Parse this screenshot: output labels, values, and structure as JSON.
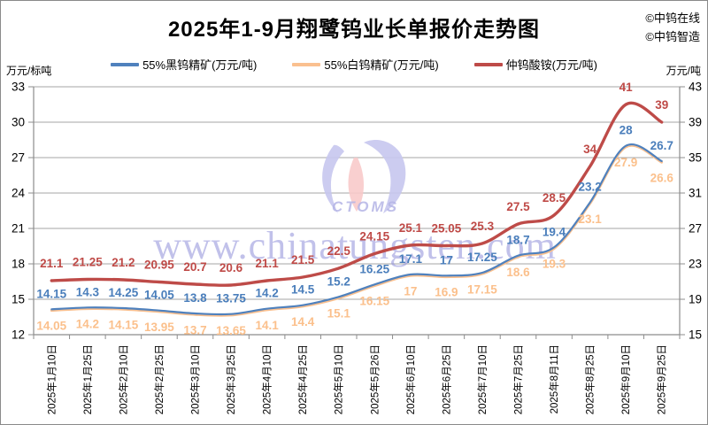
{
  "title": "2025年1-9月翔鹭钨业长单报价走势图",
  "copyright": {
    "line1": "©中钨在线",
    "line2": "©中钨智造"
  },
  "watermark": {
    "site": "www.chinatungsten.com",
    "logo": "CTOMS"
  },
  "colors": {
    "grid": "#a6a6a6",
    "axis": "#8c8c8c",
    "watermark": "#8f8fd9",
    "logo_purple": "#c6c6ee",
    "logo_pink": "#f8caca",
    "logo_text": "#b5b5e6"
  },
  "chart_data": {
    "type": "line",
    "categories": [
      "2025年1月10日",
      "2025年1月25日",
      "2025年2月10日",
      "2025年2月25日",
      "2025年3月10日",
      "2025年3月25日",
      "2025年4月10日",
      "2025年4月25日",
      "2025年5月10日",
      "2025年5月26日",
      "2025年6月10日",
      "2025年6月25日",
      "2025年7月10日",
      "2025年7月25日",
      "2025年8月11日",
      "2025年8月25日",
      "2025年9月10日",
      "2025年9月25日"
    ],
    "series": [
      {
        "name": "55%黑钨精矿(万元/吨)",
        "axis": "left",
        "color": "#4f81bd",
        "label_color": "#4a7ebb",
        "values": [
          14.15,
          14.3,
          14.25,
          14.05,
          13.8,
          13.75,
          14.2,
          14.5,
          15.2,
          16.25,
          17.1,
          17,
          17.25,
          18.7,
          19.4,
          23.2,
          28,
          26.7
        ]
      },
      {
        "name": "55%白钨精矿(万元/吨)",
        "axis": "left",
        "color": "#fac08f",
        "label_color": "#fbc08c",
        "values": [
          14.05,
          14.2,
          14.15,
          13.95,
          13.7,
          13.65,
          14.1,
          14.4,
          15.1,
          16.15,
          17,
          16.9,
          17.15,
          18.6,
          19.3,
          23.1,
          27.9,
          26.6
        ]
      },
      {
        "name": "仲钨酸铵(万元/吨)",
        "axis": "right",
        "color": "#be4b48",
        "label_color": "#bf4a47",
        "values": [
          21.1,
          21.25,
          21.2,
          20.95,
          20.7,
          20.6,
          21.1,
          21.5,
          22.5,
          24.15,
          25.1,
          25.05,
          25.3,
          27.5,
          28.5,
          34,
          41,
          39
        ]
      }
    ],
    "left_axis": {
      "label": "万元/标吨",
      "min": 12,
      "max": 33,
      "ticks": [
        12,
        15,
        18,
        21,
        24,
        27,
        30,
        33
      ]
    },
    "right_axis": {
      "label": "万元/吨",
      "min": 15,
      "max": 43,
      "ticks": [
        15,
        19,
        23,
        27,
        31,
        35,
        39,
        43
      ]
    },
    "grid": true,
    "legend_position": "top"
  }
}
